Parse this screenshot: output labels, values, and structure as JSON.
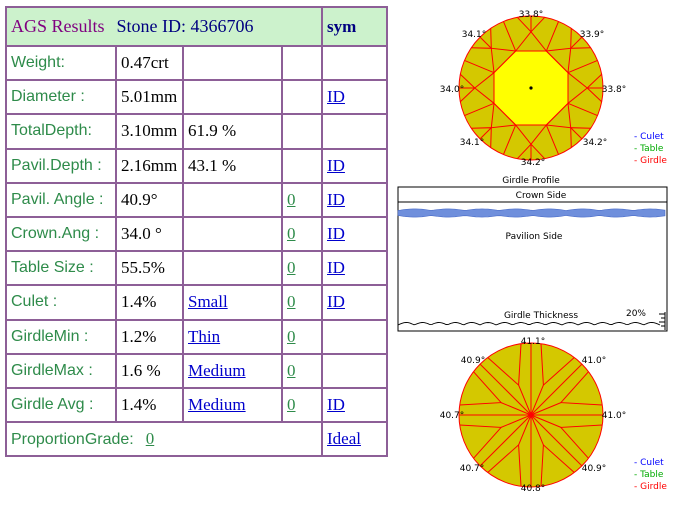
{
  "header": {
    "title": "AGS  Results",
    "stone_id": "Stone ID:  4366706",
    "sym": "sym"
  },
  "rows": {
    "weight": {
      "label": "Weight:",
      "value": "0.47crt"
    },
    "diameter": {
      "label": "Diameter :",
      "value": "5.01mm",
      "link": "ID"
    },
    "totaldepth": {
      "label": "TotalDepth:",
      "value": "3.10mm",
      "pct": "61.9 %"
    },
    "pavildepth": {
      "label": "Pavil.Depth :",
      "value": "2.16mm",
      "pct": "43.1 %",
      "link": "ID"
    },
    "pavilangle": {
      "label": "Pavil. Angle :",
      "value": "40.9°",
      "grade": "0",
      "link": "ID"
    },
    "crownang": {
      "label": "Crown.Ang :",
      "value": "34.0 °",
      "grade": "0",
      "link": "ID"
    },
    "tablesize": {
      "label": "Table Size :",
      "value": "55.5%",
      "grade": "0",
      "link": "ID"
    },
    "culet": {
      "label": "Culet :",
      "value": "1.4%",
      "desc": "Small",
      "grade": "0",
      "link": "ID"
    },
    "girdlemin": {
      "label": "GirdleMin :",
      "value": "1.2%",
      "desc": "Thin",
      "grade": "0"
    },
    "girdlemax": {
      "label": "GirdleMax :",
      "value": "1.6 %",
      "desc": "Medium",
      "grade": "0"
    },
    "girdleavg": {
      "label": "Girdle Avg :",
      "value": "1.4%",
      "desc": "Medium",
      "grade": "0",
      "link": "ID"
    },
    "proportion": {
      "label": "ProportionGrade:",
      "grade": "0",
      "link": "Ideal"
    }
  },
  "crown_diagram": {
    "angles": {
      "top": "33.8°",
      "top_left": "34.1°",
      "top_right": "33.9°",
      "left": "34.0°",
      "right": "33.8°",
      "bottom_left": "34.1°",
      "bottom_right": "34.2°",
      "bottom": "34.2°"
    },
    "legend": [
      "- Culet",
      "- Table",
      "- Girdle"
    ]
  },
  "girdle_profile": {
    "title": "Girdle Profile",
    "crown_side": "Crown Side",
    "pavilion_side": "Pavilion Side",
    "thickness_label": "Girdle Thickness",
    "thickness_pct": "20%"
  },
  "pavilion_diagram": {
    "angles": {
      "top": "41.1°",
      "top_left": "40.9°",
      "top_right": "41.0°",
      "left": "40.7°",
      "right": "41.0°",
      "bottom_left": "40.7°",
      "bottom_right": "40.9°",
      "bottom": "40.8°"
    },
    "legend": [
      "- Culet",
      "- Table",
      "- Girdle"
    ]
  },
  "colors": {
    "border": "#8d5f97",
    "header_bg": "#ccf2cc",
    "label": "#2e8b4a",
    "link": "#0000cc",
    "stone_fill": "#d4c800",
    "table_fill": "#ffff00",
    "facet_line": "#ff0000",
    "culet_legend": "#0000ff",
    "table_legend": "#00aa00",
    "girdle_legend": "#ff0000"
  }
}
